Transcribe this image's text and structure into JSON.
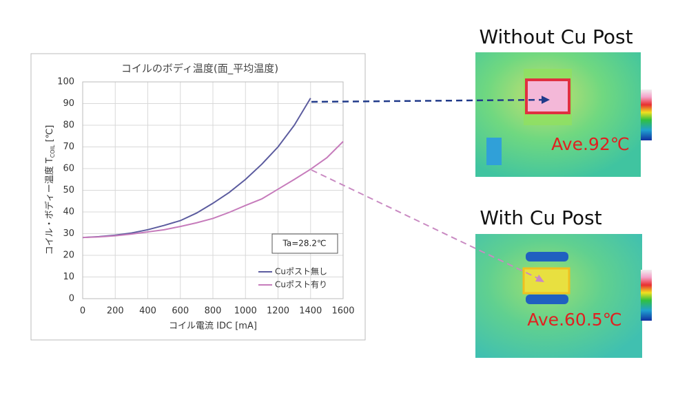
{
  "chart_data": {
    "type": "line",
    "title": "コイルのボディ温度(面_平均温度)",
    "y_label": [
      "コイル・ボディー温度 T",
      "COIL",
      " [℃]"
    ],
    "x_label": "コイル電流 IDC [mA]",
    "annotation": "Ta=28.2℃",
    "x": [
      0,
      100,
      200,
      300,
      400,
      500,
      600,
      700,
      800,
      900,
      1000,
      1100,
      1200,
      1300,
      1400,
      1500,
      1600
    ],
    "series": [
      {
        "name": "Cuポスト無し",
        "color": "#5b5b9e",
        "values": [
          28.2,
          28.6,
          29.3,
          30.3,
          31.8,
          33.8,
          36,
          39.5,
          44,
          49,
          55,
          62,
          70,
          80,
          92.5,
          null,
          null
        ]
      },
      {
        "name": "Cuポスト有り",
        "color": "#c67bbb",
        "values": [
          28.2,
          28.5,
          29,
          29.8,
          30.8,
          31.8,
          33.3,
          35,
          37,
          39.8,
          43,
          46,
          50.5,
          55,
          59.7,
          65,
          72.5
        ]
      }
    ],
    "xlim": [
      0,
      1600
    ],
    "xticks": [
      0,
      200,
      400,
      600,
      800,
      1000,
      1200,
      1400,
      1600
    ],
    "ylim": [
      0,
      100
    ],
    "yticks": [
      0,
      10,
      20,
      30,
      40,
      50,
      60,
      70,
      80,
      90,
      100
    ],
    "grid": true,
    "legend": "lower-right",
    "panels": [
      {
        "title": "Without Cu Post",
        "label": "Ave.92℃"
      },
      {
        "title": "With Cu Post",
        "label": "Ave.60.5℃"
      }
    ]
  }
}
